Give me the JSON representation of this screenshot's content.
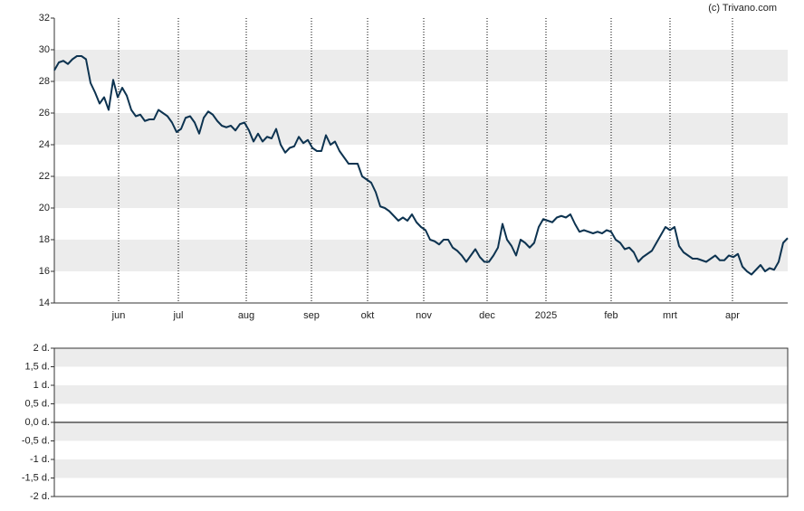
{
  "chart_data": [
    {
      "type": "line",
      "credit": "(c) Trivano.com",
      "color": "#0d3350",
      "xlim": [
        0,
        162
      ],
      "xticks": [
        {
          "value": 14.2,
          "label": "jun"
        },
        {
          "value": 27.4,
          "label": "jul"
        },
        {
          "value": 42.4,
          "label": "aug"
        },
        {
          "value": 56.8,
          "label": "sep"
        },
        {
          "value": 69.2,
          "label": "okt"
        },
        {
          "value": 81.6,
          "label": "nov"
        },
        {
          "value": 95.6,
          "label": "dec"
        },
        {
          "value": 108.6,
          "label": "2025"
        },
        {
          "value": 123,
          "label": "feb"
        },
        {
          "value": 136,
          "label": "mrt"
        },
        {
          "value": 149.8,
          "label": "apr"
        }
      ],
      "ylim": [
        14,
        32
      ],
      "yticks": [
        14,
        16,
        18,
        20,
        22,
        24,
        26,
        28,
        30,
        32
      ],
      "values": [
        28.7,
        29.2,
        29.3,
        29.1,
        29.4,
        29.6,
        29.6,
        29.4,
        27.9,
        27.3,
        26.6,
        27.0,
        26.2,
        28.1,
        27.0,
        27.6,
        27.1,
        26.2,
        25.8,
        25.9,
        25.5,
        25.6,
        25.6,
        26.2,
        26.0,
        25.8,
        25.4,
        24.8,
        25.0,
        25.7,
        25.8,
        25.4,
        24.7,
        25.7,
        26.1,
        25.9,
        25.5,
        25.2,
        25.1,
        25.2,
        24.9,
        25.3,
        25.4,
        24.9,
        24.2,
        24.7,
        24.2,
        24.5,
        24.4,
        25.0,
        24.0,
        23.5,
        23.8,
        23.9,
        24.5,
        24.1,
        24.3,
        23.8,
        23.6,
        23.6,
        24.6,
        24.0,
        24.2,
        23.6,
        23.2,
        22.8,
        22.8,
        22.8,
        22.0,
        21.8,
        21.6,
        21.0,
        20.1,
        20.0,
        19.8,
        19.5,
        19.2,
        19.4,
        19.2,
        19.6,
        19.1,
        18.8,
        18.6,
        18.0,
        17.9,
        17.7,
        18.0,
        18.0,
        17.5,
        17.3,
        17.0,
        16.6,
        17.0,
        17.4,
        16.9,
        16.6,
        16.6,
        17.0,
        17.5,
        19.0,
        18.0,
        17.6,
        17.0,
        18.0,
        17.8,
        17.5,
        17.8,
        18.8,
        19.3,
        19.2,
        19.1,
        19.4,
        19.5,
        19.4,
        19.6,
        19.0,
        18.5,
        18.6,
        18.5,
        18.4,
        18.5,
        18.4,
        18.6,
        18.5,
        18.0,
        17.8,
        17.4,
        17.5,
        17.2,
        16.6,
        16.9,
        17.1,
        17.3,
        17.8,
        18.3,
        18.8,
        18.6,
        18.8,
        17.6,
        17.2,
        17.0,
        16.8,
        16.8,
        16.7,
        16.6,
        16.8,
        17.0,
        16.7,
        16.7,
        17.0,
        16.9,
        17.1,
        16.3,
        16.0,
        15.8,
        16.1,
        16.4,
        16.0,
        16.2,
        16.1,
        16.6,
        17.8,
        18.1
      ]
    },
    {
      "type": "volume",
      "ylim": [
        -2,
        2
      ],
      "yticks": [
        {
          "value": -2,
          "label": "-2 d."
        },
        {
          "value": -1.5,
          "label": "-1,5 d."
        },
        {
          "value": -1,
          "label": "-1 d."
        },
        {
          "value": -0.5,
          "label": "-0,5 d."
        },
        {
          "value": 0,
          "label": "0,0 d."
        },
        {
          "value": 0.5,
          "label": "0,5 d."
        },
        {
          "value": 1,
          "label": "1 d."
        },
        {
          "value": 1.5,
          "label": "1,5 d."
        },
        {
          "value": 2,
          "label": "2 d."
        }
      ]
    }
  ]
}
